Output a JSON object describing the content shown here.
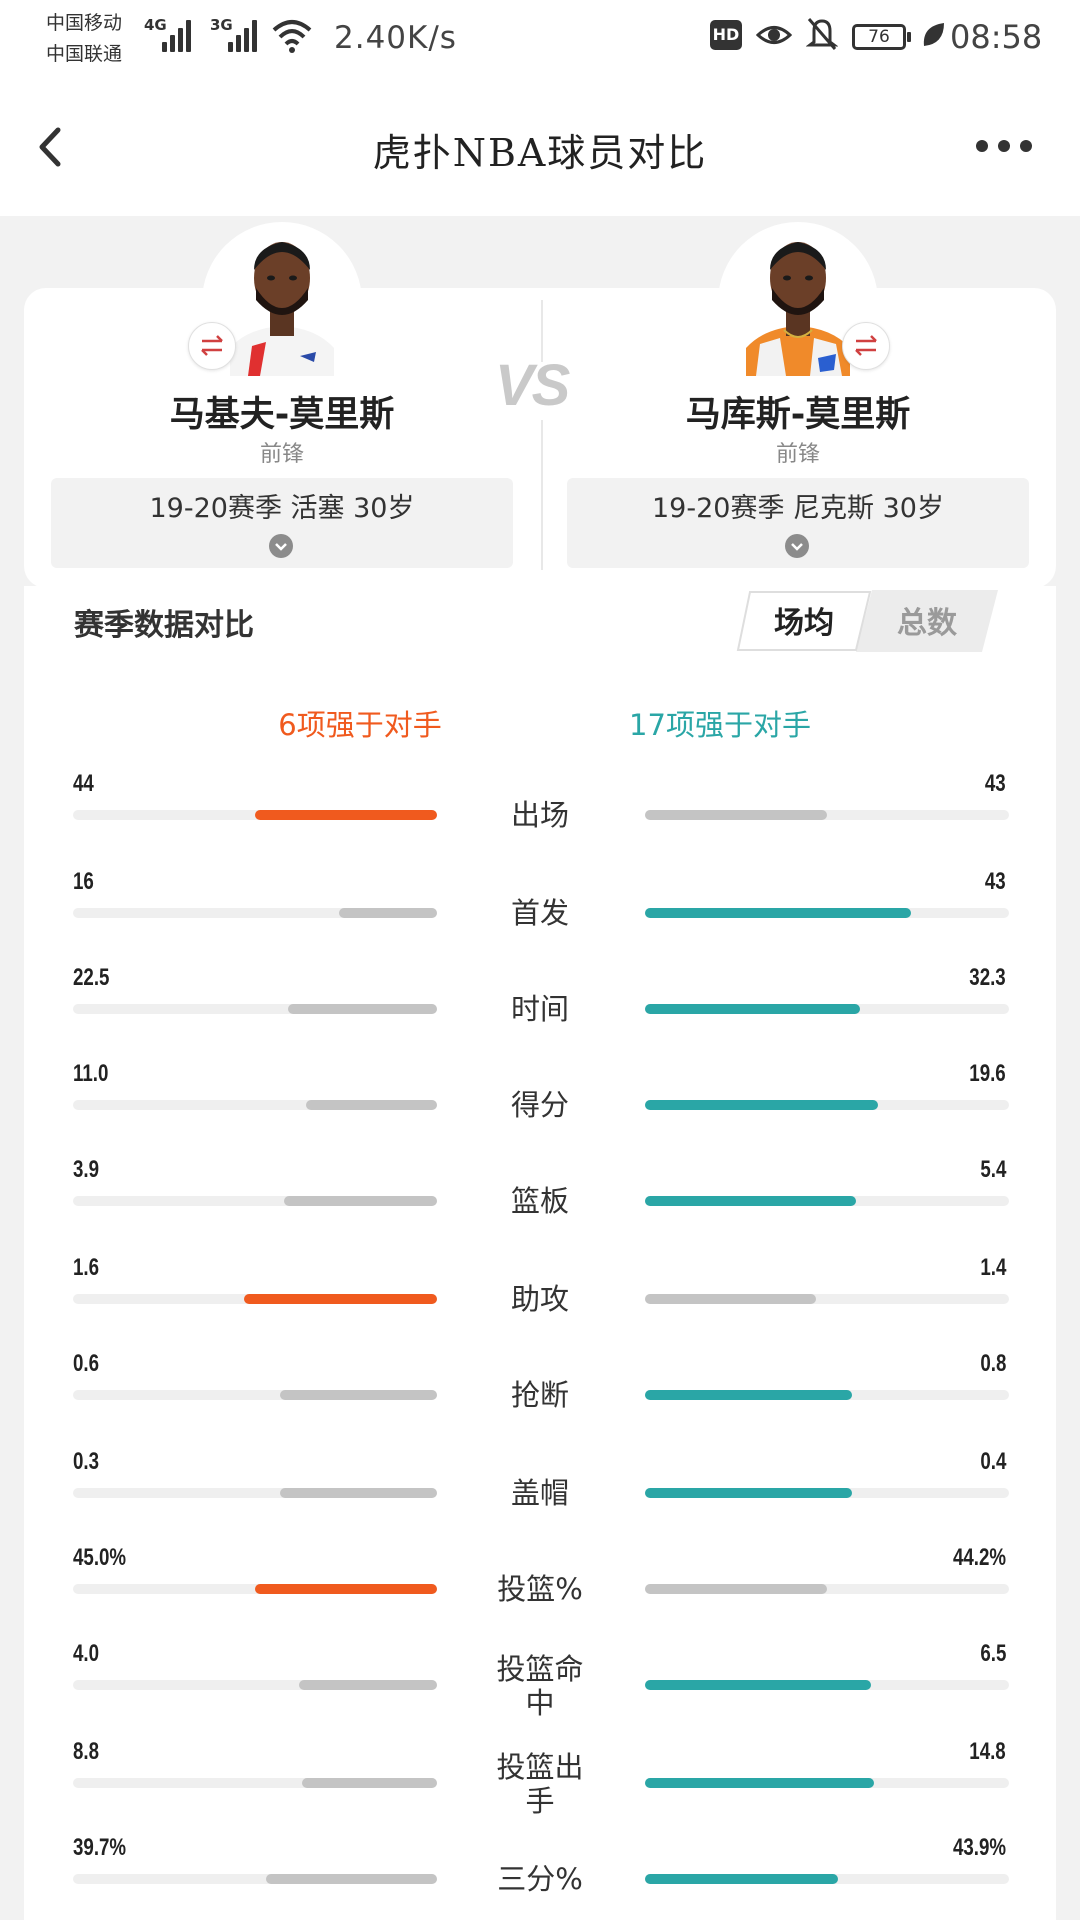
{
  "status_bar": {
    "carrier_1": "中国移动",
    "carrier_2": "中国联通",
    "net_1": "4G",
    "net_2": "3G",
    "speed": "2.40K/s",
    "hd": "HD",
    "battery": "76",
    "time": "08:58",
    "icons": [
      "signal-icon",
      "wifi-icon",
      "eye-icon",
      "bell-off-icon",
      "battery-icon",
      "leaf-icon"
    ]
  },
  "header": {
    "title": "虎扑NBA球员对比",
    "back_icon": "chevron-left-icon",
    "more_icon": "more-dots-icon"
  },
  "players": {
    "vs": "VS",
    "left": {
      "name": "马基夫-莫里斯",
      "position": "前锋",
      "season": "19-20赛季 活塞 30岁"
    },
    "right": {
      "name": "马库斯-莫里斯",
      "position": "前锋",
      "season": "19-20赛季 尼克斯 30岁"
    }
  },
  "stats_section": {
    "title": "赛季数据对比",
    "tab_active": "场均",
    "tab_inactive": "总数",
    "left_summary": "6项强于对手",
    "right_summary": "17项强于对手"
  },
  "colors": {
    "left_win": "#f05a1e",
    "right_win": "#2aa6a6",
    "loser": "#c4c4c4",
    "track": "#efefef"
  },
  "stats": [
    {
      "category": "出场",
      "left": "44",
      "right": "43",
      "left_fill": 0.5,
      "right_fill": 0.5,
      "winner": "left"
    },
    {
      "category": "首发",
      "left": "16",
      "right": "43",
      "left_fill": 0.27,
      "right_fill": 0.73,
      "winner": "right"
    },
    {
      "category": "时间",
      "left": "22.5",
      "right": "32.3",
      "left_fill": 0.41,
      "right_fill": 0.59,
      "winner": "right"
    },
    {
      "category": "得分",
      "left": "11.0",
      "right": "19.6",
      "left_fill": 0.36,
      "right_fill": 0.64,
      "winner": "right"
    },
    {
      "category": "篮板",
      "left": "3.9",
      "right": "5.4",
      "left_fill": 0.42,
      "right_fill": 0.58,
      "winner": "right"
    },
    {
      "category": "助攻",
      "left": "1.6",
      "right": "1.4",
      "left_fill": 0.53,
      "right_fill": 0.47,
      "winner": "left"
    },
    {
      "category": "抢断",
      "left": "0.6",
      "right": "0.8",
      "left_fill": 0.43,
      "right_fill": 0.57,
      "winner": "right"
    },
    {
      "category": "盖帽",
      "left": "0.3",
      "right": "0.4",
      "left_fill": 0.43,
      "right_fill": 0.57,
      "winner": "right"
    },
    {
      "category": "投篮%",
      "left": "45.0%",
      "right": "44.2%",
      "left_fill": 0.5,
      "right_fill": 0.5,
      "winner": "left"
    },
    {
      "category": "投篮命中",
      "left": "4.0",
      "right": "6.5",
      "left_fill": 0.38,
      "right_fill": 0.62,
      "winner": "right"
    },
    {
      "category": "投篮出手",
      "left": "8.8",
      "right": "14.8",
      "left_fill": 0.37,
      "right_fill": 0.63,
      "winner": "right"
    },
    {
      "category": "三分%",
      "left": "39.7%",
      "right": "43.9%",
      "left_fill": 0.47,
      "right_fill": 0.53,
      "winner": "right"
    }
  ]
}
